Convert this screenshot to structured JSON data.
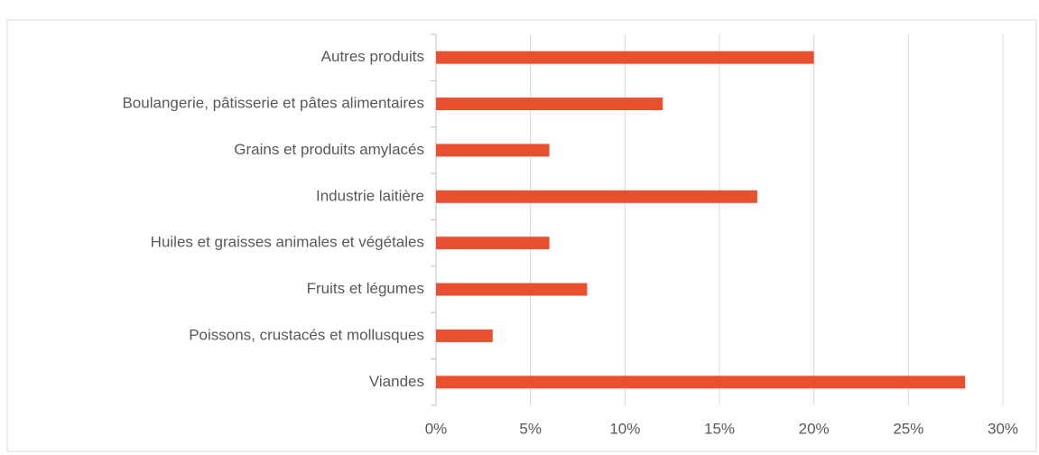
{
  "chart_data": {
    "type": "bar",
    "orientation": "horizontal",
    "categories": [
      "Autres produits",
      "Boulangerie, pâtisserie et pâtes alimentaires",
      "Grains et produits amylacés",
      "Industrie laitière",
      "Huiles et graisses animales et végétales",
      "Fruits et légumes",
      "Poissons, crustacés et mollusques",
      "Viandes"
    ],
    "values": [
      20,
      12,
      6,
      17,
      6,
      8,
      3,
      28
    ],
    "color": "#e9502f",
    "xlim": [
      0,
      30
    ],
    "xticks": [
      {
        "value": 0,
        "label": "0%"
      },
      {
        "value": 5,
        "label": "5%"
      },
      {
        "value": 10,
        "label": "10%"
      },
      {
        "value": 15,
        "label": "15%"
      },
      {
        "value": 20,
        "label": "20%"
      },
      {
        "value": 25,
        "label": "25%"
      },
      {
        "value": 30,
        "label": "30%"
      }
    ],
    "grid": true
  }
}
